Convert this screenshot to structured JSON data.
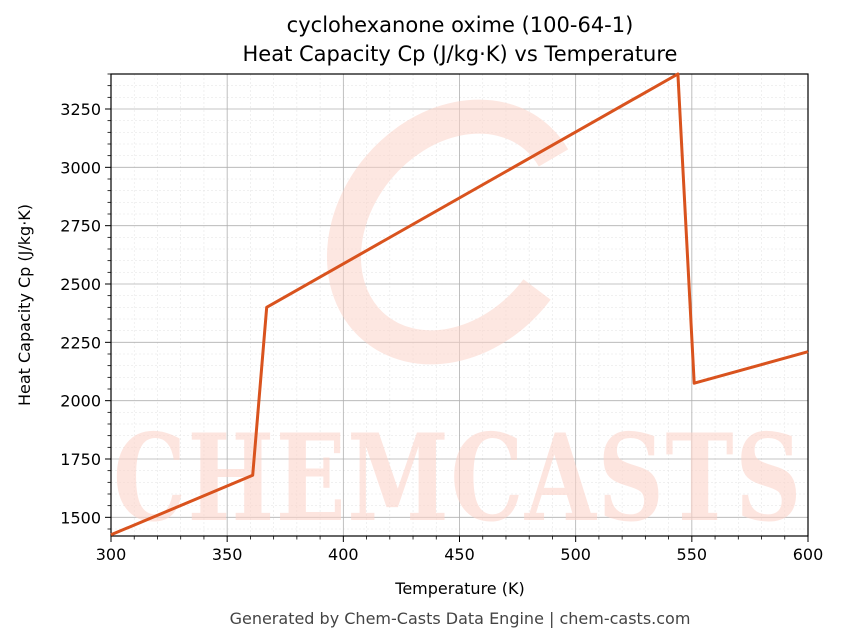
{
  "chart_data": {
    "type": "line",
    "title": "cyclohexanone oxime (100-64-1)",
    "subtitle": "Heat Capacity Cp (J/kg·K) vs Temperature",
    "xlabel": "Temperature (K)",
    "ylabel": "Heat Capacity Cp (J/kg·K)",
    "xlim": [
      300,
      600
    ],
    "ylim": [
      1420,
      3400
    ],
    "xticks": [
      300,
      350,
      400,
      450,
      500,
      550,
      600
    ],
    "yticks": [
      1500,
      1750,
      2000,
      2250,
      2500,
      2750,
      3000,
      3250
    ],
    "grid": true,
    "color": "#d9531e",
    "series": [
      {
        "x": [
          300,
          361,
          367,
          544,
          551,
          600
        ],
        "y": [
          1425,
          1680,
          2400,
          3400,
          2075,
          2210
        ]
      }
    ]
  },
  "watermark": {
    "text": "CHEMCASTS"
  },
  "footer": "Generated by Chem-Casts Data Engine | chem-casts.com"
}
